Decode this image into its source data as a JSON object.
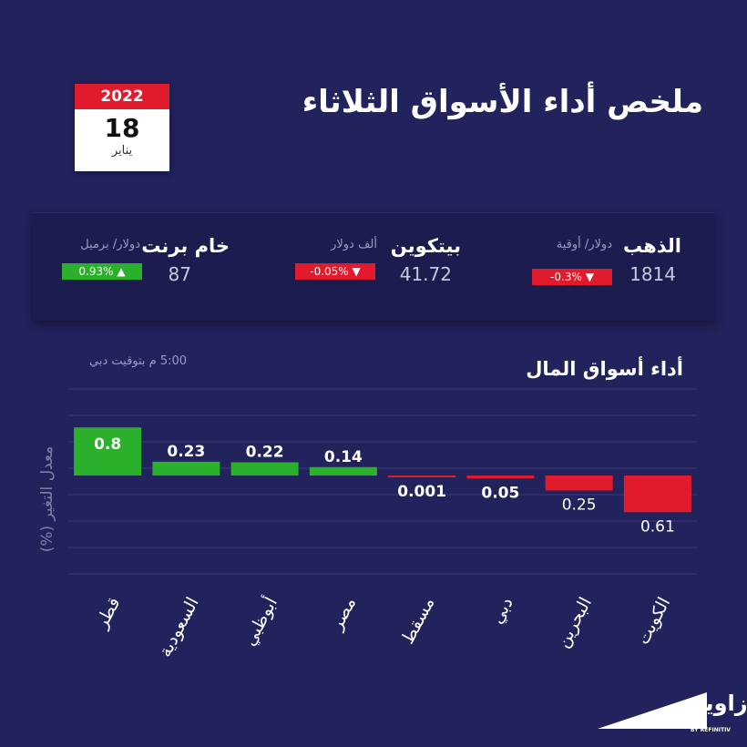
{
  "header": {
    "title": "ملخص أداء الأسواق الثلاثاء",
    "calendar": {
      "year": "2022",
      "day": "18",
      "month": "يناير"
    }
  },
  "ticker": [
    {
      "name": "الذهب",
      "unit": "دولار/ أوقية",
      "value": "1814",
      "change": "-0.3%",
      "direction": "down"
    },
    {
      "name": "بيتكوين",
      "unit": "ألف دولار",
      "value": "41.72",
      "change": "-0.05%",
      "direction": "down"
    },
    {
      "name": "خام برنت",
      "unit": "دولار/ برميل",
      "value": "87",
      "change": "0.93%",
      "direction": "up"
    }
  ],
  "section": {
    "title": "أداء أسواق المال",
    "timestamp": "5:00 م بتوقيت دبي"
  },
  "chart_data": {
    "type": "bar",
    "title": "أداء أسواق المال",
    "ylabel": "معدل التغير (%)",
    "categories": [
      "قطر",
      "السعودية",
      "أبوظبي",
      "مصر",
      "مسقط",
      "دبي",
      "البحرين",
      "الكويت"
    ],
    "values": [
      0.8,
      0.23,
      0.22,
      0.14,
      -0.001,
      -0.05,
      -0.25,
      -0.61
    ],
    "labels": [
      "0.8",
      "0.23",
      "0.22",
      "0.14",
      "0.001",
      "0.05",
      "0.25",
      "0.61"
    ],
    "ylim": [
      -2.0,
      1.5
    ],
    "grid": true,
    "colors": {
      "positive": "#2bb02b",
      "negative": "#e01b2b"
    }
  },
  "logo": {
    "name": "زاوية",
    "sub": "BY REFINITIV"
  },
  "colors": {
    "background": "#22225c",
    "panel": "#1c1c4e",
    "red": "#e01b2b",
    "green": "#2bb02b"
  }
}
